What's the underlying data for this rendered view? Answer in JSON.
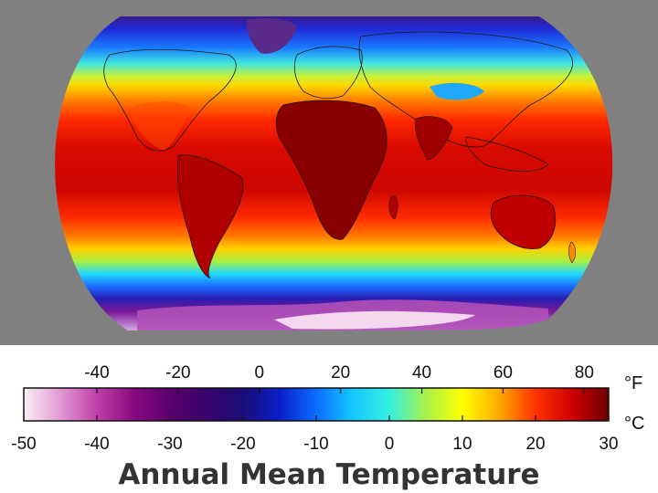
{
  "title": "Annual Mean Temperature",
  "legend": {
    "fahrenheit_unit": "°F",
    "celsius_unit": "°C",
    "fahrenheit_ticks": [
      "-40",
      "-20",
      "0",
      "20",
      "40",
      "60",
      "80"
    ],
    "celsius_ticks": [
      "-50",
      "-40",
      "-30",
      "-20",
      "-10",
      "0",
      "10",
      "20",
      "30"
    ],
    "celsius_range": [
      -50,
      30
    ],
    "color_stops": [
      {
        "c": -50,
        "color": "#fbeef6"
      },
      {
        "c": -45,
        "color": "#e29ad2"
      },
      {
        "c": -40,
        "color": "#c040a8"
      },
      {
        "c": -35,
        "color": "#8a0a80"
      },
      {
        "c": -30,
        "color": "#5a0070"
      },
      {
        "c": -25,
        "color": "#38046a"
      },
      {
        "c": -20,
        "color": "#1a0d78"
      },
      {
        "c": -15,
        "color": "#0a1ec8"
      },
      {
        "c": -10,
        "color": "#0b6dff"
      },
      {
        "c": -5,
        "color": "#14c8ff"
      },
      {
        "c": 0,
        "color": "#34f0e0"
      },
      {
        "c": 5,
        "color": "#a8f24a"
      },
      {
        "c": 10,
        "color": "#ffff00"
      },
      {
        "c": 15,
        "color": "#ffaa00"
      },
      {
        "c": 20,
        "color": "#ff3200"
      },
      {
        "c": 25,
        "color": "#d00000"
      },
      {
        "c": 30,
        "color": "#6a0000"
      }
    ]
  },
  "map": {
    "background_color": "#808080"
  }
}
